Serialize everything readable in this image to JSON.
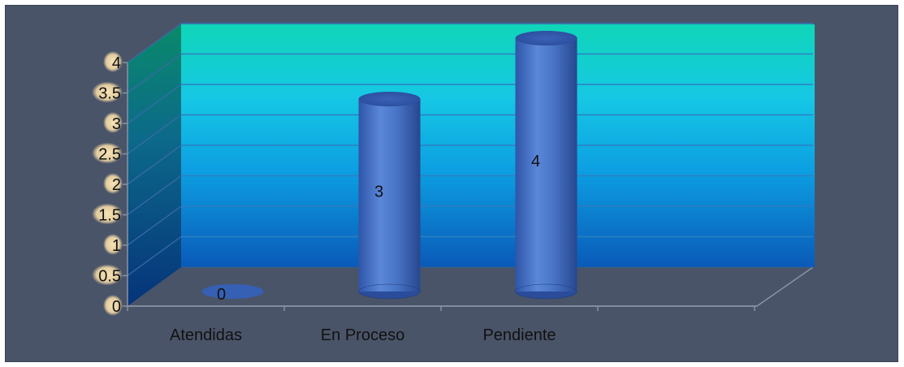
{
  "chart_data": {
    "type": "bar",
    "style": "3d-cylinder",
    "categories": [
      "Atendidas",
      "En Proceso",
      "Pendiente"
    ],
    "values": [
      0,
      3,
      4
    ],
    "data_labels": [
      "0",
      "3",
      "4"
    ],
    "ylim": [
      0,
      4
    ],
    "yticks": [
      "0",
      "0.5",
      "1",
      "1.5",
      "2",
      "2.5",
      "3",
      "3.5",
      "4"
    ],
    "grid": true,
    "title": "",
    "xlabel": "",
    "ylabel": "",
    "colors": {
      "frame": "#4a5468",
      "bar": "#4472c4",
      "wall_top": "#0fd6b8",
      "wall_bottom": "#0a5ab8",
      "tick_highlight": "#f2d9a6"
    }
  }
}
